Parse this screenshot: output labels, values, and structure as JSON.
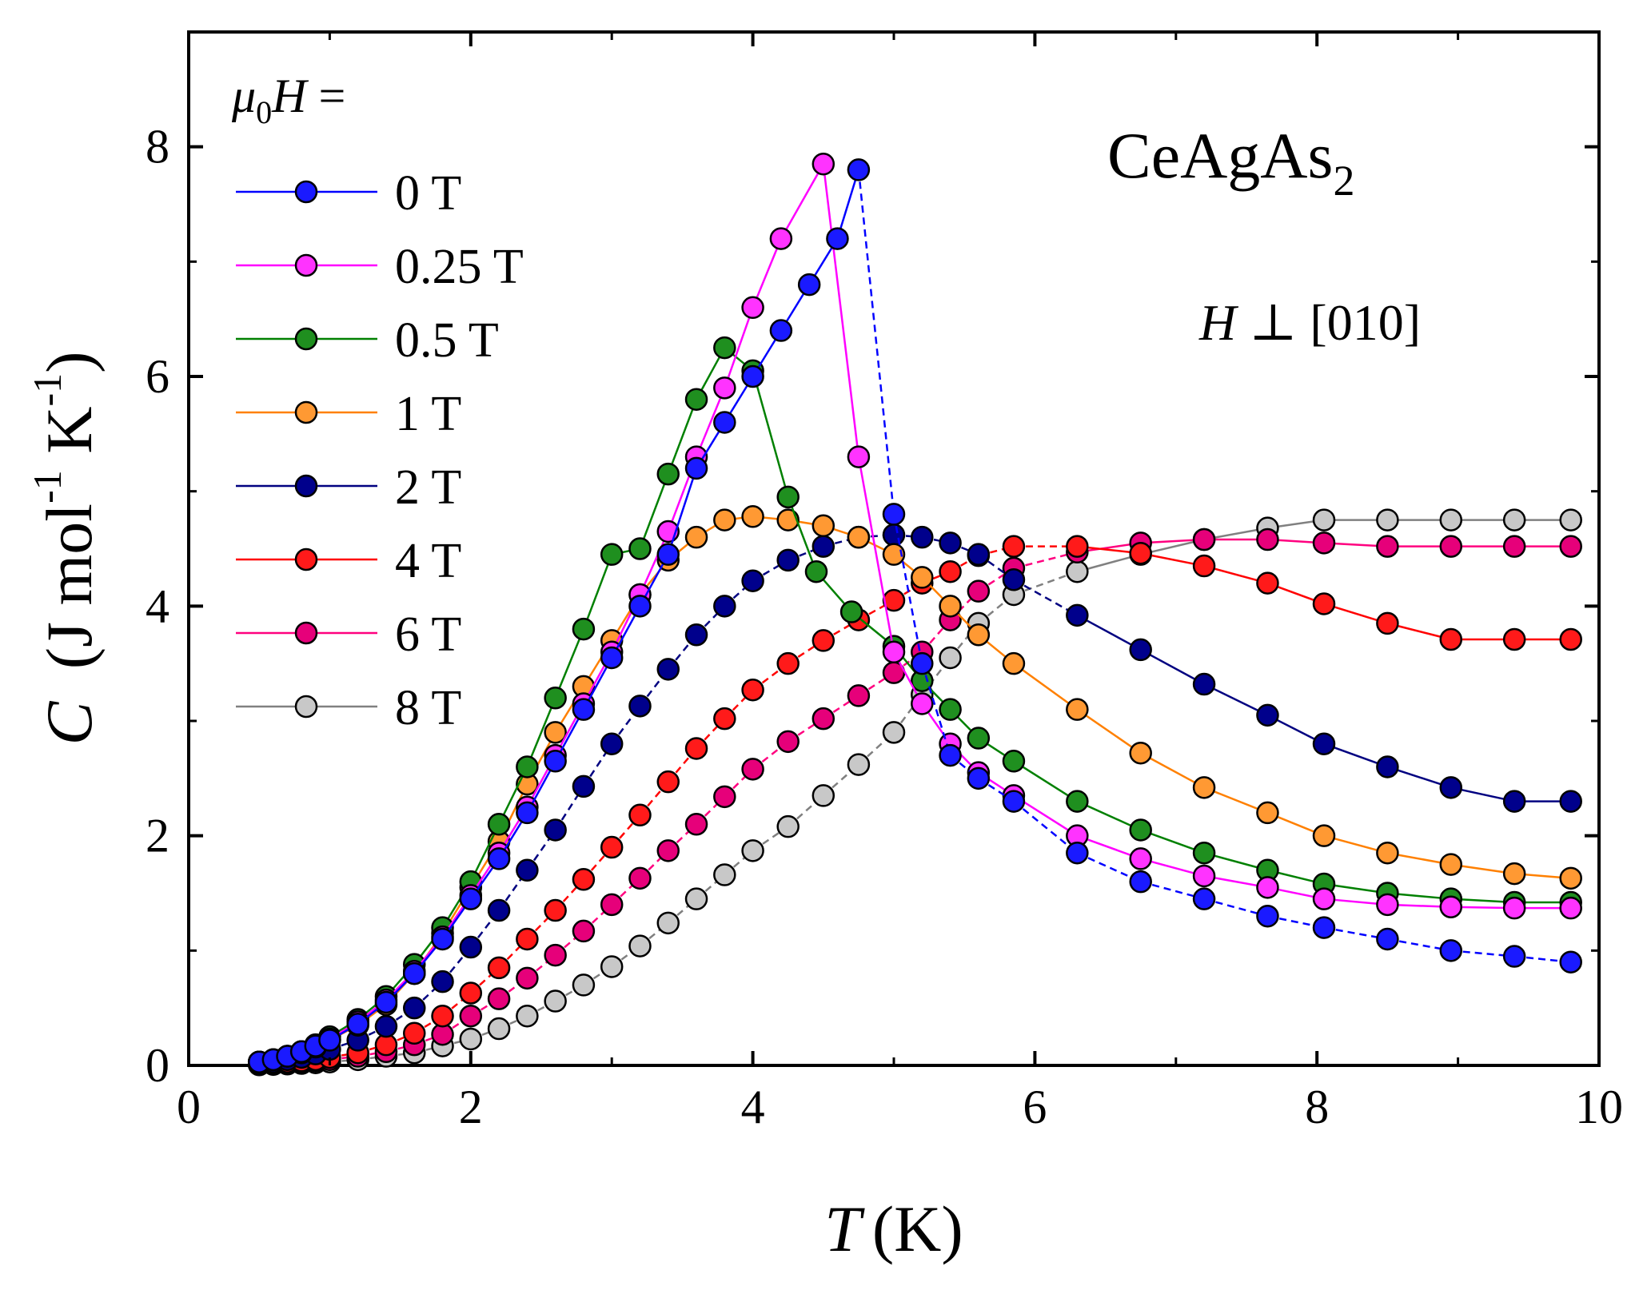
{
  "chart_data": {
    "type": "scatter",
    "title": "",
    "xlabel": "(K)",
    "xlabel_symbol": "T",
    "ylabel_symbol": "C",
    "ylabel_parts": [
      "(J mol",
      "-1",
      " K",
      "-1",
      ")"
    ],
    "xlim": [
      0,
      10
    ],
    "ylim": [
      0,
      9
    ],
    "x_ticks": [
      0,
      2,
      4,
      6,
      8,
      10
    ],
    "y_ticks": [
      0,
      2,
      4,
      6,
      8
    ],
    "grid": false,
    "legend_position": "top-left",
    "legend_title": {
      "mu": "μ",
      "sub": "0",
      "H": "H",
      "eq": " ="
    },
    "annotations": {
      "compound_main": "CeAgAs",
      "compound_sub": "2",
      "field_H": "H",
      "field_rest": " ⊥ [010]"
    },
    "series": [
      {
        "name": "0 T",
        "color": "#0000ff",
        "fill": "#1a1aff",
        "dash": "solid_then_dashed",
        "x": [
          0.5,
          0.6,
          0.7,
          0.8,
          0.9,
          1.0,
          1.2,
          1.4,
          1.6,
          1.8,
          2.0,
          2.2,
          2.4,
          2.6,
          2.8,
          3.0,
          3.2,
          3.4,
          3.6,
          3.8,
          4.0,
          4.2,
          4.4,
          4.6,
          4.75,
          5.0,
          5.2,
          5.4,
          5.6,
          5.85,
          6.3,
          6.75,
          7.2,
          7.65,
          8.05,
          8.5,
          8.95,
          9.4,
          9.8
        ],
        "y": [
          0.03,
          0.05,
          0.08,
          0.12,
          0.17,
          0.22,
          0.36,
          0.55,
          0.8,
          1.1,
          1.45,
          1.8,
          2.2,
          2.65,
          3.1,
          3.55,
          4.0,
          4.45,
          5.2,
          5.6,
          6.0,
          6.4,
          6.8,
          7.2,
          7.8,
          4.8,
          3.5,
          2.7,
          2.5,
          2.3,
          1.85,
          1.6,
          1.45,
          1.3,
          1.2,
          1.1,
          1.0,
          0.95,
          0.9
        ]
      },
      {
        "name": "0.25 T",
        "color": "#ff00ff",
        "fill": "#ff33ff",
        "dash": "solid",
        "x": [
          0.5,
          0.6,
          0.7,
          0.8,
          0.9,
          1.0,
          1.2,
          1.4,
          1.6,
          1.8,
          2.0,
          2.2,
          2.4,
          2.6,
          2.8,
          3.0,
          3.2,
          3.4,
          3.6,
          3.8,
          4.0,
          4.2,
          4.5,
          4.75,
          5.0,
          5.2,
          5.4,
          5.6,
          5.85,
          6.3,
          6.75,
          7.2,
          7.65,
          8.05,
          8.5,
          8.95,
          9.4,
          9.8
        ],
        "y": [
          0.03,
          0.05,
          0.08,
          0.12,
          0.17,
          0.23,
          0.38,
          0.57,
          0.82,
          1.12,
          1.48,
          1.85,
          2.25,
          2.7,
          3.15,
          3.6,
          4.1,
          4.65,
          5.3,
          5.9,
          6.6,
          7.2,
          7.85,
          5.3,
          3.6,
          3.15,
          2.8,
          2.55,
          2.35,
          2.0,
          1.8,
          1.65,
          1.55,
          1.45,
          1.4,
          1.38,
          1.37,
          1.37
        ]
      },
      {
        "name": "0.5 T",
        "color": "#008000",
        "fill": "#1f8f1f",
        "dash": "solid",
        "x": [
          0.5,
          0.6,
          0.7,
          0.8,
          0.9,
          1.0,
          1.2,
          1.4,
          1.6,
          1.8,
          2.0,
          2.2,
          2.4,
          2.6,
          2.8,
          3.0,
          3.2,
          3.4,
          3.6,
          3.8,
          4.0,
          4.25,
          4.45,
          4.7,
          5.0,
          5.2,
          5.4,
          5.6,
          5.85,
          6.3,
          6.75,
          7.2,
          7.65,
          8.05,
          8.5,
          8.95,
          9.4,
          9.8
        ],
        "y": [
          0.03,
          0.05,
          0.08,
          0.12,
          0.18,
          0.25,
          0.4,
          0.6,
          0.88,
          1.2,
          1.6,
          2.1,
          2.6,
          3.2,
          3.8,
          4.45,
          4.5,
          5.15,
          5.8,
          6.25,
          6.05,
          4.95,
          4.3,
          3.95,
          3.65,
          3.35,
          3.1,
          2.85,
          2.65,
          2.3,
          2.05,
          1.85,
          1.7,
          1.58,
          1.5,
          1.45,
          1.42,
          1.42
        ]
      },
      {
        "name": "1 T",
        "color": "#ff8000",
        "fill": "#ff9933",
        "dash": "solid",
        "x": [
          0.5,
          0.6,
          0.7,
          0.8,
          0.9,
          1.0,
          1.2,
          1.4,
          1.6,
          1.8,
          2.0,
          2.2,
          2.4,
          2.6,
          2.8,
          3.0,
          3.2,
          3.4,
          3.6,
          3.8,
          4.0,
          4.25,
          4.5,
          4.75,
          5.0,
          5.2,
          5.4,
          5.6,
          5.85,
          6.3,
          6.75,
          7.2,
          7.65,
          8.05,
          8.5,
          8.95,
          9.4,
          9.8
        ],
        "y": [
          0.03,
          0.05,
          0.08,
          0.11,
          0.16,
          0.22,
          0.35,
          0.53,
          0.8,
          1.15,
          1.55,
          1.95,
          2.45,
          2.9,
          3.3,
          3.7,
          4.1,
          4.4,
          4.6,
          4.75,
          4.78,
          4.75,
          4.7,
          4.6,
          4.45,
          4.25,
          4.0,
          3.75,
          3.5,
          3.1,
          2.72,
          2.42,
          2.2,
          2.0,
          1.85,
          1.75,
          1.67,
          1.63
        ]
      },
      {
        "name": "2 T",
        "color": "#000080",
        "fill": "#00008c",
        "dash": "dashed_then_solid",
        "x": [
          0.5,
          0.6,
          0.7,
          0.8,
          0.9,
          1.0,
          1.2,
          1.4,
          1.6,
          1.8,
          2.0,
          2.2,
          2.4,
          2.6,
          2.8,
          3.0,
          3.2,
          3.4,
          3.6,
          3.8,
          4.0,
          4.25,
          4.5,
          4.75,
          5.0,
          5.2,
          5.4,
          5.6,
          5.85,
          6.3,
          6.75,
          7.2,
          7.65,
          8.05,
          8.5,
          8.95,
          9.4,
          9.8
        ],
        "y": [
          0.02,
          0.03,
          0.05,
          0.07,
          0.1,
          0.14,
          0.22,
          0.34,
          0.5,
          0.73,
          1.03,
          1.35,
          1.7,
          2.05,
          2.43,
          2.8,
          3.13,
          3.45,
          3.75,
          4.0,
          4.22,
          4.4,
          4.52,
          4.6,
          4.62,
          4.6,
          4.55,
          4.45,
          4.23,
          3.92,
          3.62,
          3.32,
          3.05,
          2.8,
          2.6,
          2.42,
          2.3,
          2.3
        ]
      },
      {
        "name": "4 T",
        "color": "#ff0000",
        "fill": "#ff1a1a",
        "dash": "dashed_then_solid",
        "x": [
          0.5,
          0.6,
          0.7,
          0.8,
          0.9,
          1.0,
          1.2,
          1.4,
          1.6,
          1.8,
          2.0,
          2.2,
          2.4,
          2.6,
          2.8,
          3.0,
          3.2,
          3.4,
          3.6,
          3.8,
          4.0,
          4.25,
          4.5,
          4.75,
          5.0,
          5.2,
          5.4,
          5.6,
          5.85,
          6.3,
          6.75,
          7.2,
          7.65,
          8.05,
          8.5,
          8.95,
          9.4,
          9.8
        ],
        "y": [
          0.01,
          0.02,
          0.03,
          0.04,
          0.05,
          0.07,
          0.11,
          0.18,
          0.28,
          0.43,
          0.63,
          0.85,
          1.1,
          1.35,
          1.62,
          1.9,
          2.18,
          2.47,
          2.76,
          3.02,
          3.27,
          3.5,
          3.7,
          3.88,
          4.05,
          4.2,
          4.3,
          4.44,
          4.52,
          4.52,
          4.46,
          4.35,
          4.2,
          4.02,
          3.85,
          3.71,
          3.71,
          3.71
        ]
      },
      {
        "name": "6 T",
        "color": "#ff007f",
        "fill": "#e6007a",
        "dash": "dashed_then_solid",
        "x": [
          0.5,
          0.6,
          0.7,
          0.8,
          0.9,
          1.0,
          1.2,
          1.4,
          1.6,
          1.8,
          2.0,
          2.2,
          2.4,
          2.6,
          2.8,
          3.0,
          3.2,
          3.4,
          3.6,
          3.8,
          4.0,
          4.25,
          4.5,
          4.75,
          5.0,
          5.2,
          5.4,
          5.6,
          5.85,
          6.3,
          6.75,
          7.2,
          7.65,
          8.05,
          8.5,
          8.95,
          9.4,
          9.8
        ],
        "y": [
          0.01,
          0.015,
          0.02,
          0.03,
          0.04,
          0.05,
          0.08,
          0.12,
          0.18,
          0.27,
          0.43,
          0.58,
          0.76,
          0.96,
          1.17,
          1.4,
          1.63,
          1.87,
          2.1,
          2.34,
          2.58,
          2.82,
          3.02,
          3.22,
          3.42,
          3.6,
          3.88,
          4.13,
          4.33,
          4.47,
          4.55,
          4.58,
          4.58,
          4.55,
          4.52,
          4.52,
          4.52,
          4.52
        ]
      },
      {
        "name": "8 T",
        "color": "#808080",
        "fill": "#c8c8c8",
        "dash": "dashed_then_solid",
        "x": [
          0.5,
          0.6,
          0.7,
          0.8,
          0.9,
          1.0,
          1.2,
          1.4,
          1.6,
          1.8,
          2.0,
          2.2,
          2.4,
          2.6,
          2.8,
          3.0,
          3.2,
          3.4,
          3.6,
          3.8,
          4.0,
          4.25,
          4.5,
          4.75,
          5.0,
          5.2,
          5.4,
          5.6,
          5.85,
          6.3,
          6.75,
          7.2,
          7.65,
          8.05,
          8.5,
          8.95,
          9.4,
          9.8
        ],
        "y": [
          0.005,
          0.008,
          0.012,
          0.017,
          0.023,
          0.03,
          0.05,
          0.08,
          0.11,
          0.17,
          0.23,
          0.32,
          0.43,
          0.56,
          0.7,
          0.86,
          1.04,
          1.24,
          1.45,
          1.66,
          1.87,
          2.08,
          2.35,
          2.62,
          2.9,
          3.23,
          3.55,
          3.85,
          4.1,
          4.3,
          4.45,
          4.58,
          4.68,
          4.75,
          4.75,
          4.75,
          4.75,
          4.75
        ]
      }
    ]
  }
}
